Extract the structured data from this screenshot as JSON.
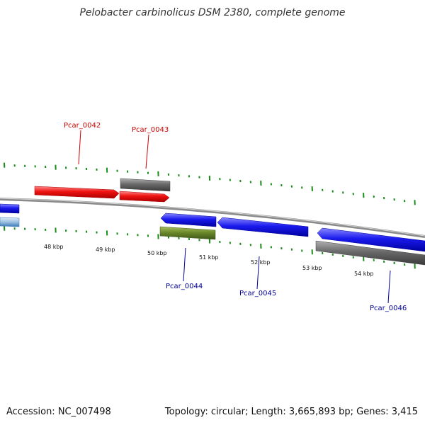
{
  "title": "Pelobacter carbinolicus DSM 2380, complete genome",
  "footer": {
    "accession": "Accession: NC_007498",
    "summary": "Topology: circular; Length: 3,665,893 bp; Genes: 3,415"
  },
  "scale_labels": [
    "48 kbp",
    "49 kbp",
    "50 kbp",
    "51 kbp",
    "52 kbp",
    "53 kbp",
    "54 kbp"
  ],
  "gene_labels": [
    "Pcar_0042",
    "Pcar_0043",
    "Pcar_0044",
    "Pcar_0045",
    "Pcar_0046"
  ],
  "colors": {
    "forward_cds": "#ee1111",
    "reverse_cds": "#1a1aee",
    "other_gene": "#707070",
    "rna": "#6b8a2a",
    "tick": "#1a8c1a",
    "backbone": "#8a8a8a",
    "forward_label": "#cc0000",
    "reverse_label": "#000099"
  }
}
